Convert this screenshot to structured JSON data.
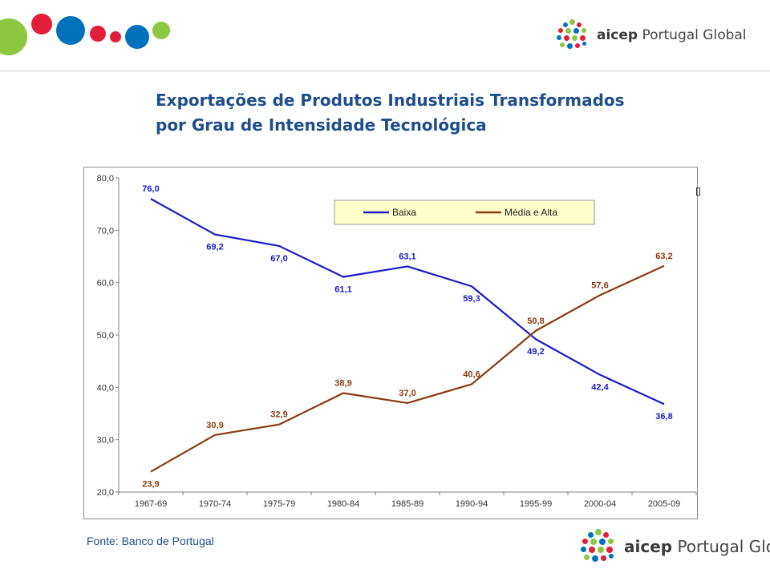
{
  "header": {
    "logo": {
      "name": "aicep",
      "suffix": "Portugal Global",
      "icon": "aicep-dot-cluster-icon"
    },
    "decorative_circles": [
      "#8dc63f",
      "#e31e3a",
      "#0072bc",
      "#e31e3a",
      "#e31e3a",
      "#0072bc",
      "#8dc63f"
    ]
  },
  "title": {
    "line1": "Exportações de Produtos Industriais Transformados",
    "line2": "por Grau de Intensidade Tecnológica"
  },
  "chart_data": {
    "type": "line",
    "categories": [
      "1967-69",
      "1970-74",
      "1975-79",
      "1980-84",
      "1985-89",
      "1990-94",
      "1995-99",
      "2000-04",
      "2005-09"
    ],
    "series": [
      {
        "name": "Baixa",
        "color": "#1a1acc",
        "values": [
          76.0,
          69.2,
          67.0,
          61.1,
          63.1,
          59.3,
          49.2,
          42.4,
          36.8
        ],
        "labels": [
          "76,0",
          "69,2",
          "67,0",
          "61,1",
          "63,1",
          "59,3",
          "49,2",
          "42,4",
          "36,8"
        ]
      },
      {
        "name": "Média e Alta",
        "color": "#8b3a0e",
        "values": [
          23.9,
          30.9,
          32.9,
          38.9,
          37.0,
          40.6,
          50.8,
          57.6,
          63.2
        ],
        "labels": [
          "23,9",
          "30,9",
          "32,9",
          "38,9",
          "37,0",
          "40,6",
          "50,8",
          "57,6",
          "63,2"
        ]
      }
    ],
    "y_ticks": [
      "20,0",
      "30,0",
      "40,0",
      "50,0",
      "60,0",
      "70,0",
      "80,0"
    ],
    "ylim": [
      20,
      80
    ],
    "grid": false,
    "legend_position": "top-right",
    "legend_background": "#ffffcc"
  },
  "source": "Fonte: Banco de Portugal",
  "footer": {
    "logo": {
      "name": "aicep",
      "suffix": "Portugal Global",
      "icon": "aicep-dot-cluster-icon"
    }
  }
}
